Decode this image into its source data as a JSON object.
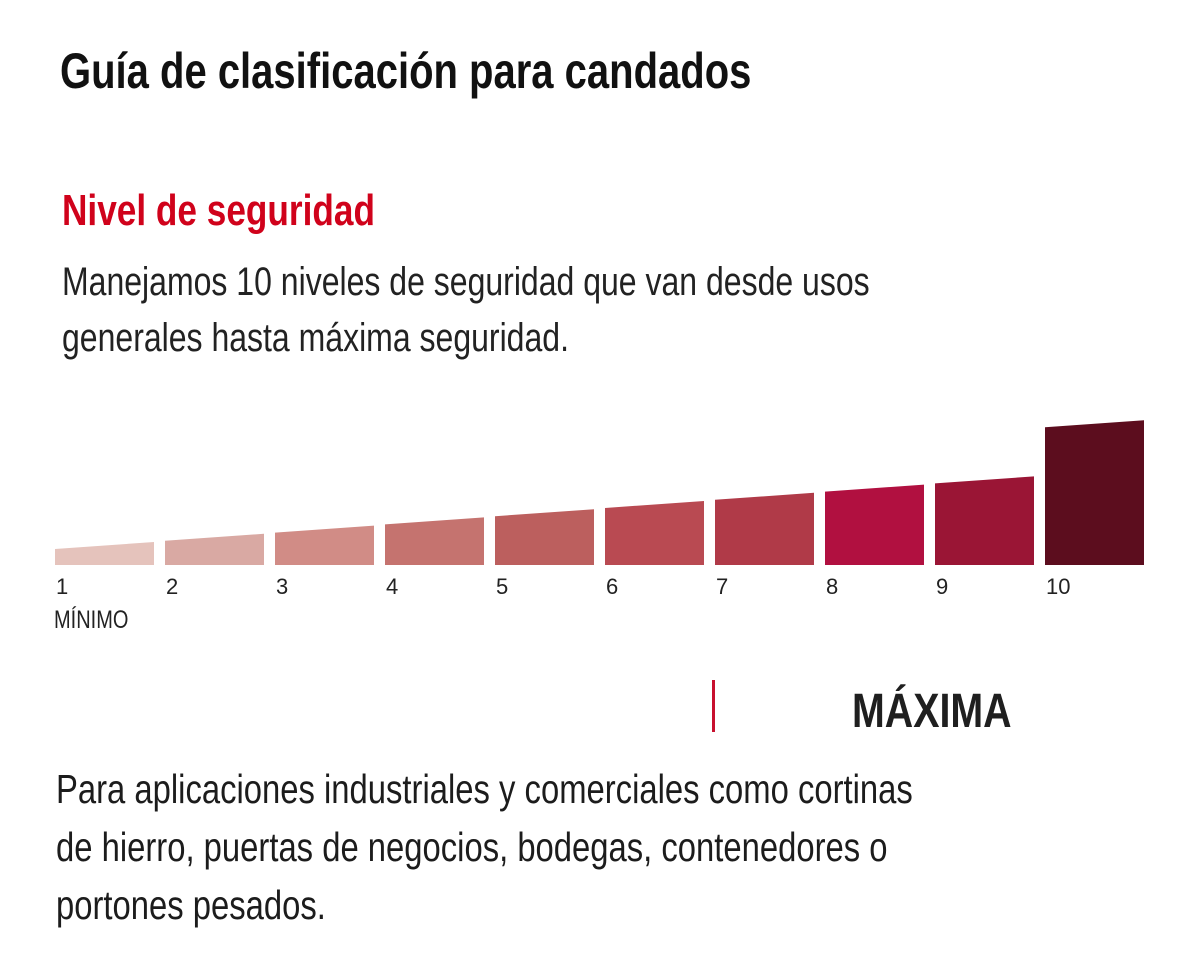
{
  "header": {
    "title": "Guía de clasificación para candados",
    "subtitle": "Nivel de seguridad",
    "intro_lines": [
      "Manejamos 10 niveles de seguridad que van desde usos",
      "generales hasta máxima seguridad."
    ]
  },
  "chart_data": {
    "type": "bar",
    "title": "Nivel de seguridad",
    "xlabel": "",
    "ylabel": "",
    "categories": [
      "1",
      "2",
      "3",
      "4",
      "5",
      "6",
      "7",
      "8",
      "9",
      "10"
    ],
    "values": [
      1,
      2,
      3,
      4,
      5,
      6,
      7,
      8,
      9,
      10
    ],
    "colors": [
      "#e5c3bc",
      "#d9a9a3",
      "#d18c86",
      "#c5736f",
      "#bc5f5e",
      "#b94a52",
      "#b03a48",
      "#b11040",
      "#9a1535",
      "#5c0d1e"
    ],
    "grid": false,
    "legend": "none",
    "min_label": "MÍNIMO",
    "max_label": "MÁXIMA"
  },
  "accent": {
    "red": "#d0021b",
    "divider": "#c8102e"
  },
  "description_lines": [
    "Para aplicaciones industriales y comerciales como cortinas",
    "de hierro, puertas de negocios, bodegas, contenedores o",
    "portones pesados."
  ]
}
